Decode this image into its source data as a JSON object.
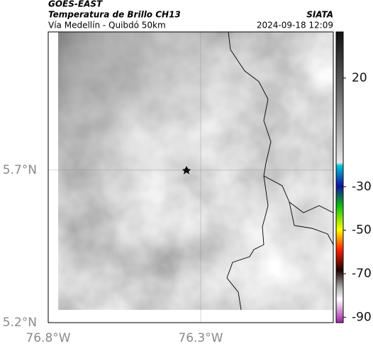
{
  "header": {
    "title": "GOES-EAST",
    "subtitle": "Temperatura de Brillo CH13",
    "route": "Vía Medellín - Quibdó 50km",
    "agency": "SIATA",
    "timestamp": "2024-09-18 12:09"
  },
  "map": {
    "xlim": [
      -76.8,
      -75.865
    ],
    "ylim": [
      5.2,
      6.153
    ],
    "lon_ticks": [
      {
        "value": -76.8,
        "label": "76.8°W"
      },
      {
        "value": -76.3,
        "label": "76.3°W"
      }
    ],
    "lat_ticks": [
      {
        "value": 5.7,
        "label": "5.7°N"
      },
      {
        "value": 5.2,
        "label": "5.2°N"
      }
    ]
  },
  "colorbar": {
    "clim": [
      -92.5,
      41.2
    ],
    "ticks": [
      20,
      -30,
      -50,
      -70,
      -90
    ]
  }
}
